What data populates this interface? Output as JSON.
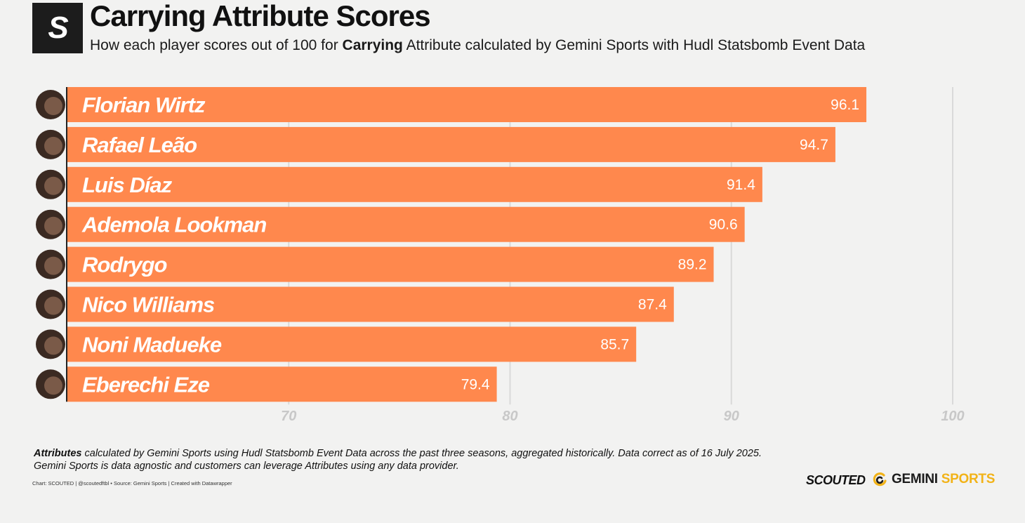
{
  "header": {
    "logo_letter": "S",
    "title": "Carrying Attribute Scores",
    "subtitle_pre": "How each player scores out of 100 for ",
    "subtitle_bold": "Carrying",
    "subtitle_post": " Attribute calculated by Gemini Sports with Hudl Statsbomb Event Data"
  },
  "colors": {
    "bar": "#ff884d",
    "bar_label": "#ffffff",
    "grid": "#d9d9d9",
    "tick_label": "#c8c8c8",
    "axis_line": "#222222"
  },
  "chart_data": {
    "type": "bar",
    "orientation": "horizontal",
    "categories": [
      "Florian Wirtz",
      "Rafael Leão",
      "Luis Díaz",
      "Ademola Lookman",
      "Rodrygo",
      "Nico Williams",
      "Noni Madueke",
      "Eberechi Eze"
    ],
    "values": [
      96.1,
      94.7,
      91.4,
      90.6,
      89.2,
      87.4,
      85.7,
      79.4
    ],
    "value_labels": [
      "96.1",
      "94.7",
      "91.4",
      "90.6",
      "89.2",
      "87.4",
      "85.7",
      "79.4"
    ],
    "xlim": [
      60,
      100
    ],
    "xticks": [
      70,
      80,
      90,
      100
    ],
    "grid": true,
    "player_avatars": true,
    "title": "Carrying Attribute Scores"
  },
  "footer": {
    "note_bold": "Attributes",
    "note_line1_rest": " calculated by Gemini Sports using Hudl Statsbomb Event Data across the past three seasons, aggregated historically. Data correct as of 16 July 2025.",
    "note_line2": "Gemini Sports is data agnostic and customers can leverage Attributes using any data provider.",
    "credit": "Chart: SCOUTED | @scoutedftbl • Source: Gemini Sports | Created with Datawrapper",
    "brand_scouted": "SCOUTED",
    "brand_gemini_a": "GEMINI",
    "brand_gemini_b": "SPORTS"
  }
}
